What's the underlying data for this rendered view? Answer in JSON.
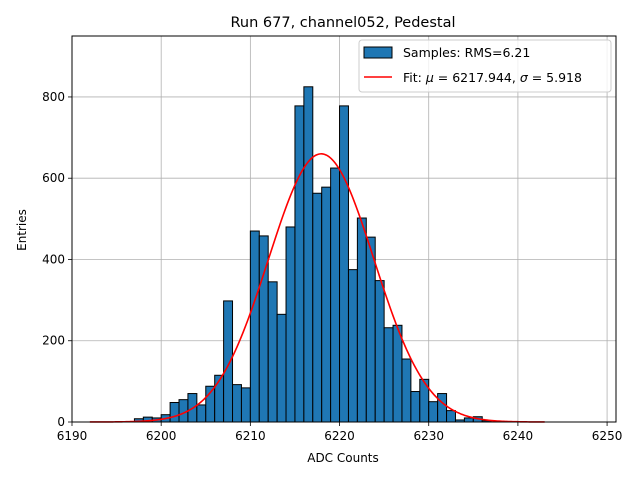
{
  "chart_data": {
    "type": "bar",
    "title": "Run 677, channel052, Pedestal",
    "xlabel": "ADC Counts",
    "ylabel": "Entries",
    "xlim": [
      6190,
      6251
    ],
    "ylim": [
      0,
      950
    ],
    "xticks": [
      "6190",
      "6200",
      "6210",
      "6220",
      "6230",
      "6240",
      "6250"
    ],
    "yticks": [
      "0",
      "200",
      "400",
      "600",
      "800"
    ],
    "grid": true,
    "legend_position": "top-right",
    "bin_width": 1,
    "series": [
      {
        "name": "Samples: RMS=6.21",
        "kind": "histogram",
        "color": "#1f77b4",
        "bins": [
          {
            "x": 6197,
            "y": 8
          },
          {
            "x": 6198,
            "y": 12
          },
          {
            "x": 6199,
            "y": 10
          },
          {
            "x": 6200,
            "y": 18
          },
          {
            "x": 6201,
            "y": 48
          },
          {
            "x": 6202,
            "y": 55
          },
          {
            "x": 6203,
            "y": 70
          },
          {
            "x": 6204,
            "y": 42
          },
          {
            "x": 6205,
            "y": 88
          },
          {
            "x": 6206,
            "y": 115
          },
          {
            "x": 6207,
            "y": 298
          },
          {
            "x": 6208,
            "y": 92
          },
          {
            "x": 6209,
            "y": 84
          },
          {
            "x": 6210,
            "y": 470
          },
          {
            "x": 6211,
            "y": 458
          },
          {
            "x": 6212,
            "y": 345
          },
          {
            "x": 6213,
            "y": 265
          },
          {
            "x": 6214,
            "y": 480
          },
          {
            "x": 6215,
            "y": 778
          },
          {
            "x": 6216,
            "y": 825
          },
          {
            "x": 6217,
            "y": 563
          },
          {
            "x": 6218,
            "y": 578
          },
          {
            "x": 6219,
            "y": 625
          },
          {
            "x": 6220,
            "y": 778
          },
          {
            "x": 6221,
            "y": 375
          },
          {
            "x": 6222,
            "y": 502
          },
          {
            "x": 6223,
            "y": 455
          },
          {
            "x": 6224,
            "y": 348
          },
          {
            "x": 6225,
            "y": 232
          },
          {
            "x": 6226,
            "y": 238
          },
          {
            "x": 6227,
            "y": 155
          },
          {
            "x": 6228,
            "y": 75
          },
          {
            "x": 6229,
            "y": 105
          },
          {
            "x": 6230,
            "y": 50
          },
          {
            "x": 6231,
            "y": 70
          },
          {
            "x": 6232,
            "y": 28
          },
          {
            "x": 6233,
            "y": 5
          },
          {
            "x": 6234,
            "y": 10
          },
          {
            "x": 6235,
            "y": 13
          },
          {
            "x": 6236,
            "y": 3
          }
        ]
      },
      {
        "name": "Fit: μ = 6217.944, σ = 5.918",
        "kind": "gaussian-fit",
        "color": "#ff0000",
        "mu": 6217.944,
        "sigma": 5.918,
        "amplitude": 660,
        "x_range": [
          6192,
          6243
        ]
      }
    ],
    "legend": {
      "samples_label": "Samples: RMS=6.21",
      "fit_prefix": "Fit: ",
      "fit_mu_symbol": "μ",
      "fit_mu_value": " = 6217.944, ",
      "fit_sigma_symbol": "σ",
      "fit_sigma_value": " = 5.918"
    }
  }
}
